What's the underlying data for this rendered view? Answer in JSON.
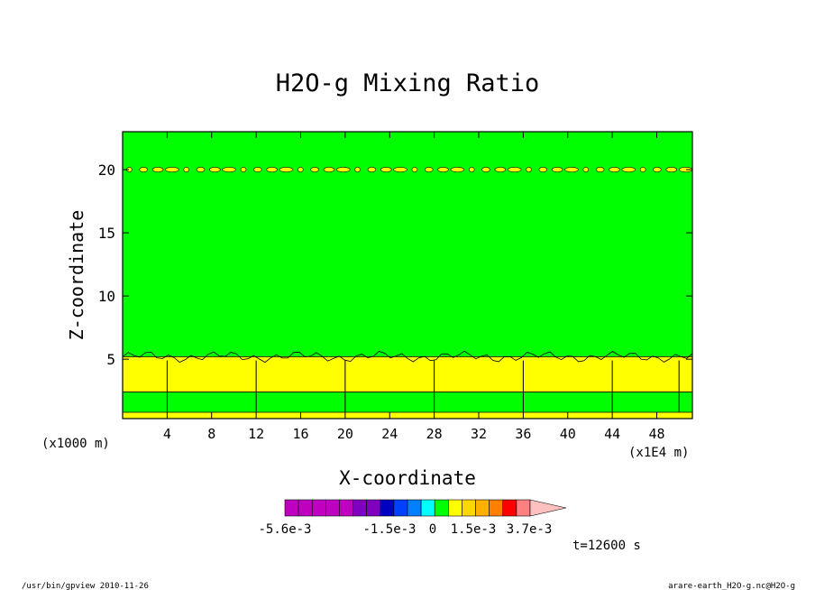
{
  "chart_data": {
    "type": "heatmap",
    "title": "H2O-g Mixing Ratio",
    "xlabel": "X-coordinate",
    "ylabel": "Z-coordinate",
    "x_unit_left": "(x1000 m)",
    "x_unit_right": "(x1E4 m)",
    "x_ticks": [
      "4",
      "8",
      "12",
      "16",
      "20",
      "24",
      "28",
      "32",
      "36",
      "40",
      "44",
      "48"
    ],
    "x_tick_values": [
      4,
      8,
      12,
      16,
      20,
      24,
      28,
      32,
      36,
      40,
      44,
      48
    ],
    "y_ticks": [
      "5",
      "10",
      "15",
      "20"
    ],
    "y_tick_values": [
      5,
      10,
      15,
      20
    ],
    "xlim": [
      0,
      51.2
    ],
    "ylim": [
      0.3,
      23
    ],
    "regions": [
      {
        "z_from": 0.3,
        "z_to": 0.8,
        "color": "#ffff00"
      },
      {
        "z_from": 0.8,
        "z_to": 2.4,
        "color": "#00ff00"
      },
      {
        "z_from": 2.4,
        "z_to": 5.2,
        "color": "#ffff00"
      },
      {
        "z_from": 5.2,
        "z_to": 23,
        "color": "#00ff00"
      }
    ],
    "upper_band_z": 20,
    "colorbar": {
      "colors": [
        "#c000c0",
        "#c000c0",
        "#c000c0",
        "#c000c0",
        "#c000c0",
        "#8000c0",
        "#8000c0",
        "#0000c0",
        "#0040ff",
        "#0080ff",
        "#00ffff",
        "#00ff00",
        "#ffff00",
        "#ffd700",
        "#ffb000",
        "#ff8000",
        "#ff0000",
        "#ff8080",
        "#ffc0c0"
      ],
      "labels": [
        "-5.6e-3",
        "-1.5e-3",
        "0",
        "1.5e-3",
        "3.7e-3"
      ]
    },
    "time_label": "t=12600 s"
  },
  "footer": {
    "left": "/usr/bin/gpview  2010-11-26",
    "right": "arare-earth_H2O-g.nc@H2O-g"
  }
}
